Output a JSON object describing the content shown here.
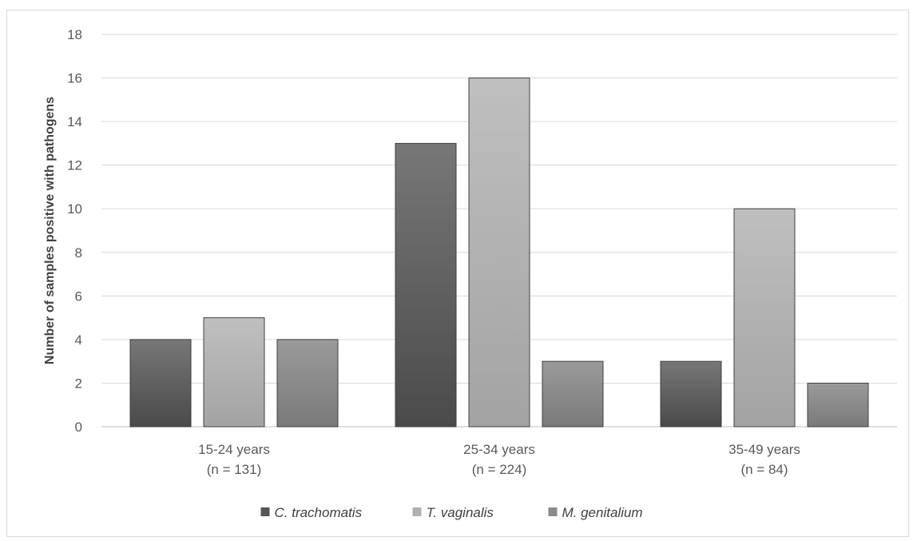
{
  "chart_data": {
    "type": "bar",
    "title": "",
    "ylabel": "Number of samples positive with pathogens",
    "xlabel": "",
    "ylim": [
      0,
      18
    ],
    "yticks": [
      "0",
      "2",
      "4",
      "6",
      "8",
      "10",
      "12",
      "14",
      "16",
      "18"
    ],
    "grid": true,
    "legend_position": "bottom",
    "categories": [
      [
        "15-24 years",
        "(n = 131)"
      ],
      [
        "25-34 years",
        "(n = 224)"
      ],
      [
        "35-49 years",
        "(n = 84)"
      ]
    ],
    "series": [
      {
        "name": "C. trachomatis",
        "values": [
          4,
          13,
          3
        ],
        "color_top": "#777777",
        "color_bottom": "#4a4a4a",
        "legend_color": "#555555"
      },
      {
        "name": "T. vaginalis",
        "values": [
          5,
          16,
          10
        ],
        "color_top": "#bfbfbf",
        "color_bottom": "#a3a3a3",
        "legend_color": "#b0b0b0"
      },
      {
        "name": "M. genitalium",
        "values": [
          4,
          3,
          2
        ],
        "color_top": "#9a9a9a",
        "color_bottom": "#7a7a7a",
        "legend_color": "#8a8a8a"
      }
    ]
  },
  "colors": {
    "grid": "#d9d9d9",
    "axis": "#bfbfbf",
    "text": "#595959"
  }
}
